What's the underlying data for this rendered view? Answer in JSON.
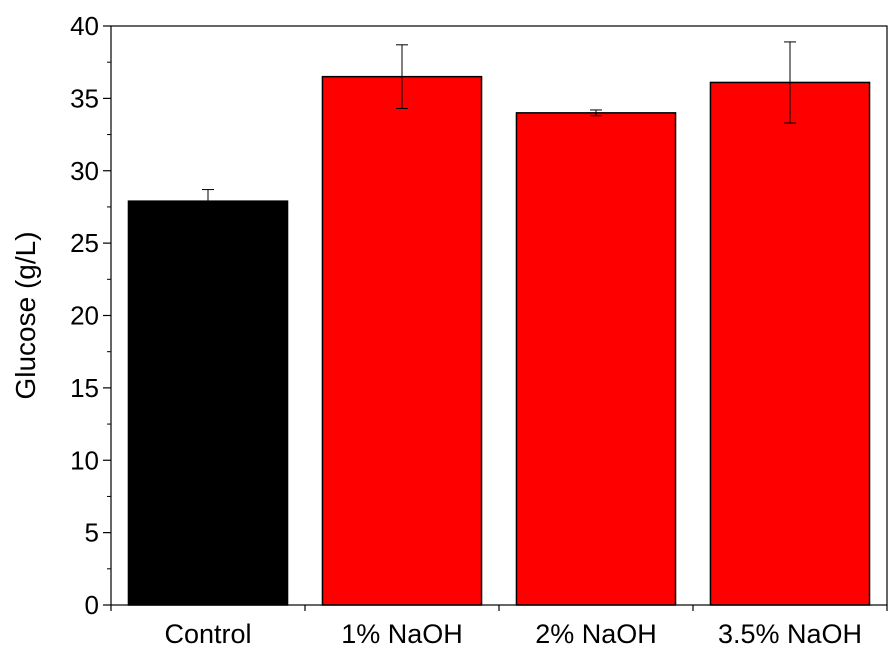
{
  "chart_data": {
    "type": "bar",
    "title": "",
    "xlabel": "",
    "ylabel": "Glucose (g/L)",
    "ylim": [
      0,
      40
    ],
    "yticks": [
      0,
      5,
      10,
      15,
      20,
      25,
      30,
      35,
      40
    ],
    "grid": false,
    "categories": [
      "Control",
      "1% NaOH",
      "2% NaOH",
      "3.5% NaOH"
    ],
    "values": [
      27.9,
      36.5,
      34.0,
      36.1
    ],
    "errors": [
      0.8,
      2.2,
      0.2,
      2.8
    ],
    "colors": [
      "#000000",
      "#ff0000",
      "#ff0000",
      "#ff0000"
    ]
  }
}
